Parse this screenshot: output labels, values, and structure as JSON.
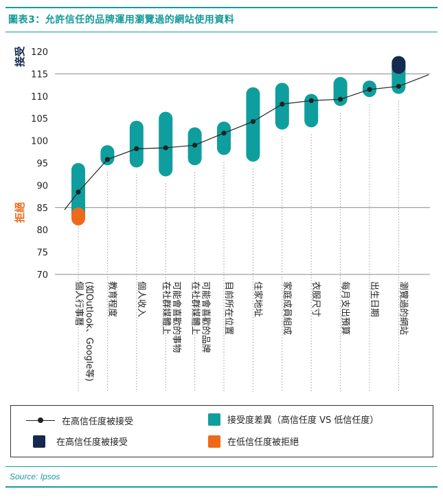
{
  "header": {
    "title": "圖表3：允許信任的品牌運用瀏覽過的網站使用資料"
  },
  "chart_data": {
    "type": "range-dot",
    "title": "圖表3：允許信任的品牌運用瀏覽過的網站使用資料",
    "ylim": [
      70,
      120
    ],
    "yticks": [
      70,
      75,
      80,
      85,
      90,
      95,
      100,
      105,
      110,
      115,
      120
    ],
    "accept_threshold": 115,
    "reject_threshold": 85,
    "ylabel_accept": "接受",
    "ylabel_reject": "拒絕",
    "categories": [
      {
        "label": "個人行事曆",
        "label2": "(如Outlook、Google等)",
        "low": 82,
        "high": 95,
        "value": 88.5,
        "reject_low": 81,
        "reject_high": 85,
        "accept_low": null,
        "accept_high": null
      },
      {
        "label": "教育程度",
        "label2": "",
        "low": 94.5,
        "high": 99,
        "value": 95.8,
        "reject_low": null,
        "reject_high": null,
        "accept_low": null,
        "accept_high": null
      },
      {
        "label": "個人收入",
        "label2": "",
        "low": 94,
        "high": 104.5,
        "value": 98.2,
        "reject_low": null,
        "reject_high": null,
        "accept_low": null,
        "accept_high": null
      },
      {
        "label": "在社群媒體上",
        "label2": "可能會喜歡的事物",
        "low": 92,
        "high": 106.5,
        "value": 98.4,
        "reject_low": null,
        "reject_high": null,
        "accept_low": null,
        "accept_high": null
      },
      {
        "label": "在社群媒體上",
        "label2": "可能會喜歡的品牌",
        "low": 94.5,
        "high": 103,
        "value": 99,
        "reject_low": null,
        "reject_high": null,
        "accept_low": null,
        "accept_high": null
      },
      {
        "label": "目前所在位置",
        "label2": "",
        "low": 96.8,
        "high": 104.3,
        "value": 101.7,
        "reject_low": null,
        "reject_high": null,
        "accept_low": null,
        "accept_high": null
      },
      {
        "label": "住家地址",
        "label2": "",
        "low": 95.3,
        "high": 112,
        "value": 104.3,
        "reject_low": null,
        "reject_high": null,
        "accept_low": null,
        "accept_high": null
      },
      {
        "label": "家庭成員組成",
        "label2": "",
        "low": 102.5,
        "high": 113,
        "value": 108.2,
        "reject_low": null,
        "reject_high": null,
        "accept_low": null,
        "accept_high": null
      },
      {
        "label": "衣服尺寸",
        "label2": "",
        "low": 103,
        "high": 110.5,
        "value": 109,
        "reject_low": null,
        "reject_high": null,
        "accept_low": null,
        "accept_high": null
      },
      {
        "label": "每月支出預算",
        "label2": "",
        "low": 107.8,
        "high": 114.3,
        "value": 109.3,
        "reject_low": null,
        "reject_high": null,
        "accept_low": null,
        "accept_high": null
      },
      {
        "label": "出生日期",
        "label2": "",
        "low": 109.8,
        "high": 113.5,
        "value": 111.5,
        "reject_low": null,
        "reject_high": null,
        "accept_low": null,
        "accept_high": null
      },
      {
        "label": "瀏覽過的網站",
        "label2": "",
        "low": 110.5,
        "high": 119,
        "value": 112.2,
        "reject_low": null,
        "reject_high": null,
        "accept_low": 115,
        "accept_high": 119
      }
    ],
    "trend_start": 84.5,
    "trend_end": 114.8,
    "colors": {
      "range": "#0f9e9e",
      "accept": "#152a4e",
      "reject": "#ee6a1a",
      "line": "#222222",
      "axis": "#888888"
    }
  },
  "legend": {
    "items": [
      {
        "label": "在高信任度被接受"
      },
      {
        "label": "接受度差異（高信任度 VS 低信任度）"
      },
      {
        "label": "在高信任度被接受"
      },
      {
        "label": "在低信任度被拒絕"
      }
    ]
  },
  "footer": {
    "source": "Source: Ipsos"
  }
}
